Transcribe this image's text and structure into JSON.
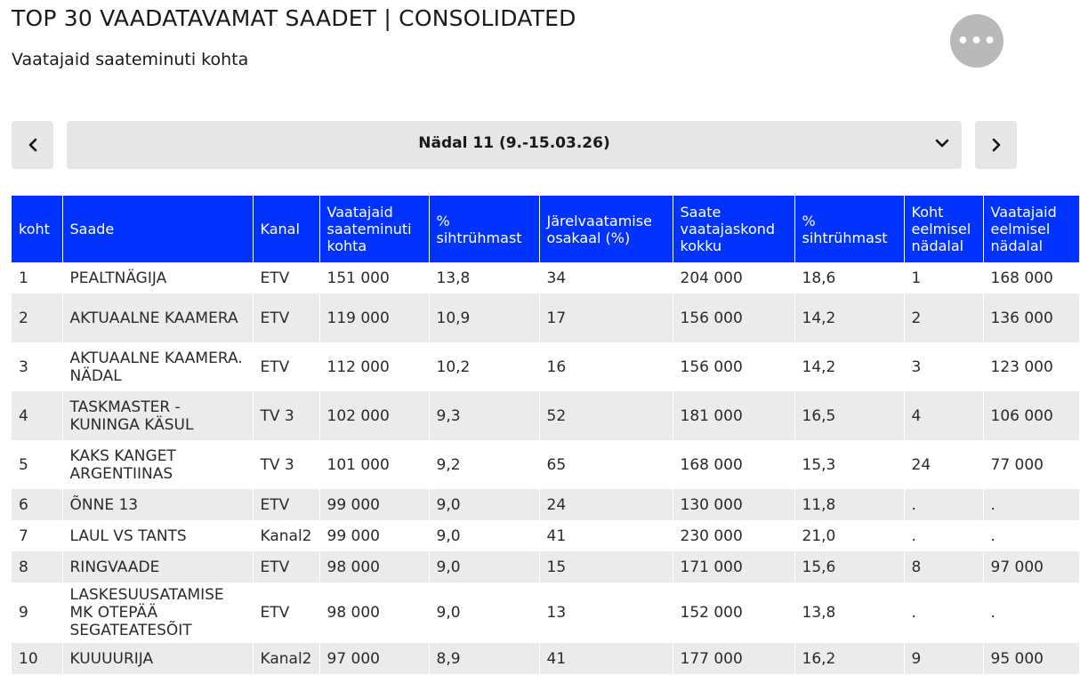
{
  "header": {
    "title": "TOP 30 VAADATAVAMAT SAADET | CONSOLIDATED",
    "subtitle": "Vaatajaid saateminuti kohta",
    "more_label": "•••"
  },
  "week": {
    "label": "Nädal 11 (9.-15.03.26)"
  },
  "table": {
    "columns": [
      "koht",
      "Saade",
      "Kanal",
      "Vaatajaid saateminuti kohta",
      "% sihtrühmast",
      "Järelvaatamise osakaal (%)",
      "Saate vaatajaskond kokku",
      "% sihtrühmast",
      "Koht eelmisel nädalal",
      "Vaatajaid eelmisel nädalal"
    ],
    "rows": [
      [
        "1",
        "PEALTNÄGIJA",
        "ETV",
        "151 000",
        "13,8",
        "34",
        "204 000",
        "18,6",
        "1",
        "168 000"
      ],
      [
        "2",
        "AKTUAALNE KAAMERA",
        "ETV",
        "119 000",
        "10,9",
        "17",
        "156 000",
        "14,2",
        "2",
        "136 000"
      ],
      [
        "3",
        "AKTUAALNE KAAMERA. NÄDAL",
        "ETV",
        "112 000",
        "10,2",
        "16",
        "156 000",
        "14,2",
        "3",
        "123 000"
      ],
      [
        "4",
        "TASKMASTER - KUNINGA KÄSUL",
        "TV 3",
        "102 000",
        "9,3",
        "52",
        "181 000",
        "16,5",
        "4",
        "106 000"
      ],
      [
        "5",
        "KAKS KANGET ARGENTIINAS",
        "TV 3",
        "101 000",
        "9,2",
        "65",
        "168 000",
        "15,3",
        "24",
        "77 000"
      ],
      [
        "6",
        "ÕNNE 13",
        "ETV",
        "99 000",
        "9,0",
        "24",
        "130 000",
        "11,8",
        ".",
        "."
      ],
      [
        "7",
        "LAUL VS TANTS",
        "Kanal2",
        "99 000",
        "9,0",
        "41",
        "230 000",
        "21,0",
        ".",
        "."
      ],
      [
        "8",
        "RINGVAADE",
        "ETV",
        "98 000",
        "9,0",
        "15",
        "171 000",
        "15,6",
        "8",
        "97 000"
      ],
      [
        "9",
        "LASKESUUSATAMISE MK OTEPÄÄ SEGATEATESÕIT",
        "ETV",
        "98 000",
        "9,0",
        "13",
        "152 000",
        "13,8",
        ".",
        "."
      ],
      [
        "10",
        "KUUUURIJA",
        "Kanal2",
        "97 000",
        "8,9",
        "41",
        "177 000",
        "16,2",
        "9",
        "95 000"
      ]
    ],
    "row_lines": [
      1,
      2,
      2,
      2,
      2,
      1,
      1,
      1,
      3,
      1
    ]
  },
  "colors": {
    "header_bg": "#0033ff",
    "stripe": "#ebebeb",
    "control_bg": "#e6e6e6",
    "more_button_bg": "#b9b9b9"
  },
  "icons": {
    "prev": "chevron-left-icon",
    "next": "chevron-right-icon",
    "dropdown": "chevron-down-icon",
    "more": "more-horizontal-icon"
  }
}
